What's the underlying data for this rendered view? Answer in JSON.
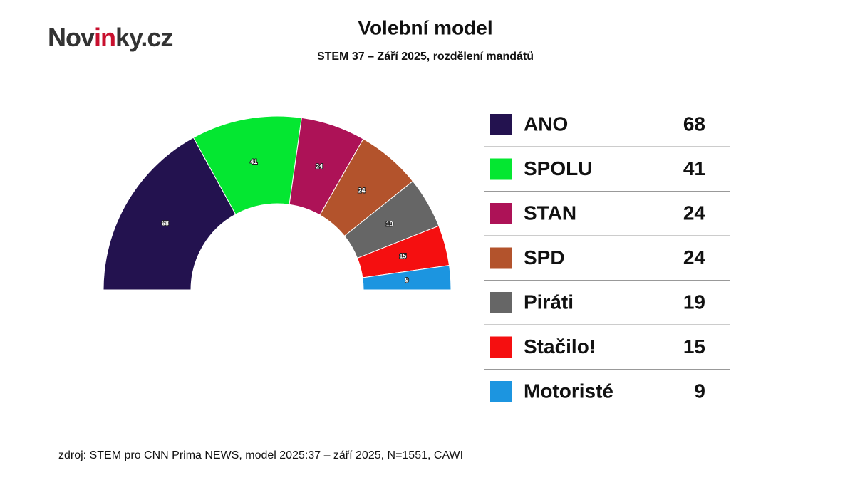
{
  "logo": [
    "Nov",
    "in",
    "ky.cz"
  ],
  "chart_data": {
    "type": "semicircle",
    "title": "Volební model",
    "subtitle": "STEM 37 – Září 2025, rozdělení mandátů",
    "categories": [
      "ANO",
      "SPOLU",
      "STAN",
      "SPD",
      "Piráti",
      "Stačilo!",
      "Motoristé"
    ],
    "values": [
      68,
      41,
      24,
      24,
      19,
      15,
      9
    ],
    "colors": [
      "#23124f",
      "#04e731",
      "#ad1257",
      "#b3532c",
      "#666666",
      "#f50f10",
      "#1c95e0"
    ],
    "source": "zdroj: STEM pro CNN Prima NEWS, model 2025:37 – září 2025, N=1551, CAWI"
  }
}
